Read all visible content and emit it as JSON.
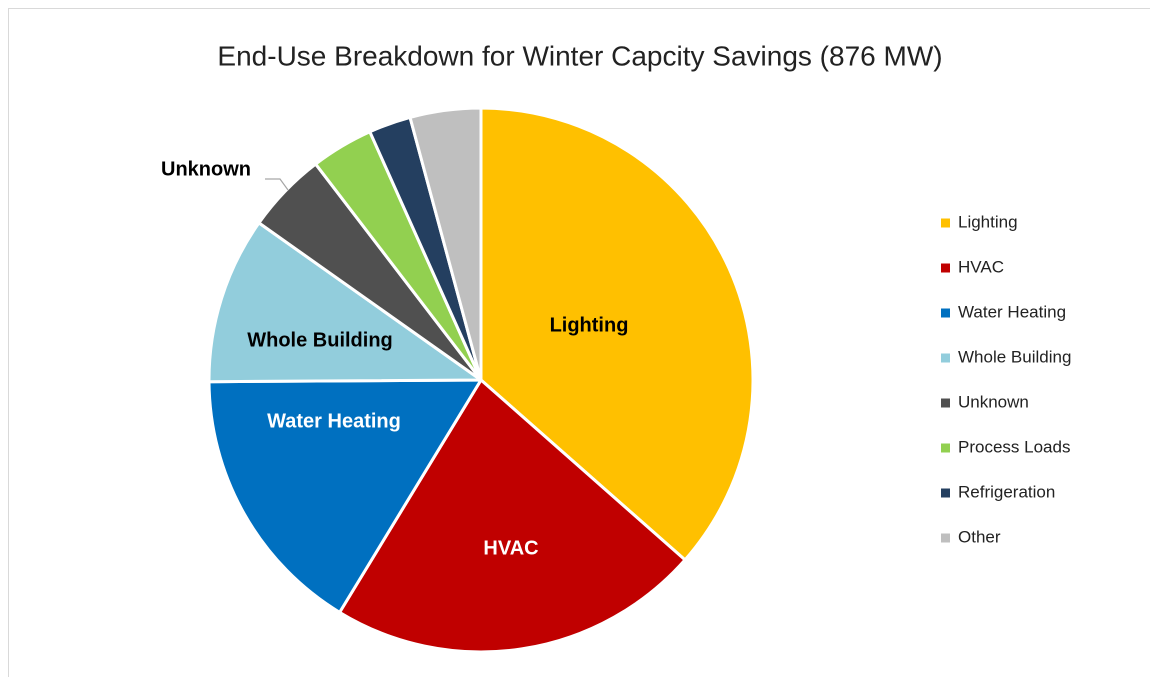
{
  "chart_data": {
    "type": "pie",
    "title": "End-Use Breakdown for Winter Capcity Savings (876 MW)",
    "categories": [
      "Lighting",
      "HVAC",
      "Water Heating",
      "Whole Building",
      "Unknown",
      "Process Loads",
      "Refrigeration",
      "Other"
    ],
    "values": [
      36.5,
      22.2,
      16.2,
      9.9,
      4.8,
      3.7,
      2.5,
      4.2
    ],
    "colors": [
      "#ffc000",
      "#c00000",
      "#0070c0",
      "#92cddc",
      "#505050",
      "#92d050",
      "#243f60",
      "#bfbfbf"
    ],
    "legend": "right"
  }
}
